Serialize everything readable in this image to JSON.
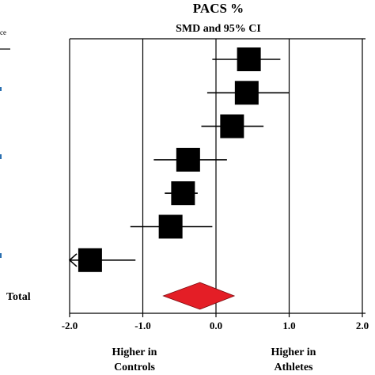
{
  "chart_data": {
    "type": "forest",
    "title": "PACS %",
    "subtitle": "SMD and 95% CI",
    "left_header_fragment": "ce",
    "total_label": "Total",
    "xlim": [
      -2.0,
      2.0
    ],
    "x_ticks": [
      -2.0,
      -1.0,
      0.0,
      1.0,
      2.0
    ],
    "x_tick_labels": [
      "-2.0",
      "-1.0",
      "0.0",
      "1.0",
      "2.0"
    ],
    "grid": "vertical lines at each tick",
    "direction_labels": {
      "left_line1": "Higher in",
      "left_line2": "Controls",
      "right_line1": "Higher in",
      "right_line2": "Athletes"
    },
    "studies": [
      {
        "smd": 0.45,
        "ci_low": -0.05,
        "ci_high": 0.88
      },
      {
        "smd": 0.42,
        "ci_low": -0.12,
        "ci_high": 1.0
      },
      {
        "smd": 0.22,
        "ci_low": -0.2,
        "ci_high": 0.65
      },
      {
        "smd": -0.38,
        "ci_low": -0.85,
        "ci_high": 0.15
      },
      {
        "smd": -0.45,
        "ci_low": -0.7,
        "ci_high": -0.25
      },
      {
        "smd": -0.62,
        "ci_low": -1.17,
        "ci_high": -0.05
      },
      {
        "smd": -1.72,
        "ci_low": -2.0,
        "ci_high": -1.1,
        "ci_low_truncated": true
      }
    ],
    "total": {
      "smd": -0.22,
      "ci_low": -0.72,
      "ci_high": 0.25
    },
    "colors": {
      "marker": "#000000",
      "total": "#e41e26",
      "line": "#000000",
      "left_marks": "#2a6fb0"
    }
  }
}
